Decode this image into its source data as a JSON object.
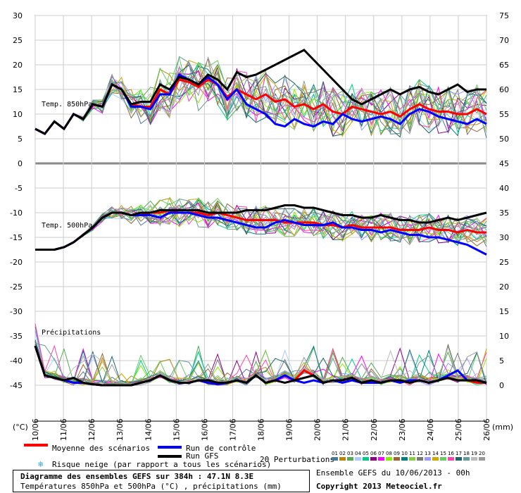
{
  "chart_data": {
    "type": "line",
    "title": "Diagramme des ensembles GEFS sur 384h : 47.1N 8.3E",
    "subtitle": "Températures 850hPa et 500hPa (°C) , précipitations (mm)",
    "x_labels": [
      "10/06",
      "11/06",
      "12/06",
      "13/06",
      "14/06",
      "15/06",
      "16/06",
      "17/06",
      "18/06",
      "19/06",
      "20/06",
      "21/06",
      "22/06",
      "23/06",
      "24/06",
      "25/06",
      "26/06"
    ],
    "left_axis": {
      "unit": "(°C)",
      "ticks": [
        30,
        25,
        20,
        15,
        10,
        5,
        0,
        -5,
        -10,
        -15,
        -20,
        -25,
        -30,
        -35,
        -40,
        -45
      ]
    },
    "right_axis": {
      "unit": "(mm)",
      "ticks": [
        75,
        70,
        65,
        60,
        55,
        50,
        45,
        40,
        35,
        30,
        25,
        20,
        15,
        10,
        5,
        0
      ]
    },
    "panels": [
      {
        "label": "Temp. 850hPa",
        "series": [
          {
            "name": "Moyenne des scénarios",
            "color": "#ff0000",
            "values": [
              7,
              6,
              8.5,
              7,
              10,
              9,
              12,
              11.5,
              16,
              15,
              12,
              11.5,
              11.5,
              15,
              14,
              17,
              16.5,
              15.5,
              17,
              16,
              13.5,
              15,
              14,
              13,
              14,
              12.5,
              13,
              11.5,
              12,
              11,
              12,
              10.5,
              10,
              11.5,
              11,
              10.5,
              10,
              10.5,
              9.5,
              11,
              12,
              11,
              10.5,
              10.5,
              10,
              10,
              11,
              10
            ]
          },
          {
            "name": "Run de contrôle",
            "color": "#0000ff",
            "values": [
              7,
              6,
              8.5,
              7,
              10,
              9,
              12,
              11.5,
              16,
              15,
              11.5,
              11.5,
              11,
              14,
              14,
              18,
              17,
              16,
              17.5,
              16,
              13,
              15,
              12,
              11,
              10,
              8,
              7.5,
              9,
              8,
              7.5,
              8.5,
              8,
              10,
              9,
              8.5,
              9,
              9.5,
              9,
              8,
              10,
              11,
              10.5,
              9.5,
              9,
              8.5,
              8,
              9,
              8
            ]
          },
          {
            "name": "Run GFS",
            "color": "#000000",
            "values": [
              7,
              6,
              8.5,
              7,
              10,
              9,
              12,
              11.5,
              16,
              15,
              12,
              12.5,
              12.5,
              16,
              15,
              17.5,
              17,
              16,
              18,
              17,
              15,
              18.5,
              17.5,
              18,
              19,
              20,
              21,
              22,
              23,
              21,
              19,
              17,
              15,
              13,
              12,
              13,
              14,
              15,
              14,
              15,
              15.5,
              14.5,
              14,
              15,
              16,
              14.5,
              15,
              15
            ]
          }
        ]
      },
      {
        "label": "Temp. 500hPa",
        "series": [
          {
            "name": "Moyenne des scénarios",
            "color": "#ff0000",
            "values": [
              -17.5,
              -17.5,
              -17.5,
              -17,
              -16,
              -14.5,
              -13,
              -11,
              -10,
              -10,
              -10.5,
              -10.5,
              -10,
              -10,
              -9.5,
              -10,
              -10,
              -10,
              -10.5,
              -10,
              -10.5,
              -11,
              -11.5,
              -11.5,
              -11.5,
              -11.5,
              -12,
              -12,
              -12,
              -12,
              -12.5,
              -12.5,
              -13,
              -12.5,
              -13,
              -13,
              -13,
              -13,
              -13.5,
              -13.5,
              -13.5,
              -13,
              -13.5,
              -13.5,
              -14,
              -13.5,
              -14,
              -14
            ]
          },
          {
            "name": "Run de contrôle",
            "color": "#0000ff",
            "values": [
              -17.5,
              -17.5,
              -17.5,
              -17,
              -16,
              -14.5,
              -13,
              -11,
              -10,
              -10,
              -10.5,
              -10.5,
              -10.5,
              -11,
              -10,
              -10,
              -10,
              -10.5,
              -11,
              -11,
              -11.5,
              -12,
              -12.5,
              -13,
              -13,
              -12,
              -11.5,
              -12,
              -12.5,
              -12.5,
              -12.5,
              -12,
              -13,
              -13,
              -13.5,
              -13.5,
              -14,
              -13.5,
              -14,
              -14.5,
              -14.5,
              -15,
              -15,
              -15.5,
              -16,
              -16.5,
              -17.5,
              -18.5
            ]
          },
          {
            "name": "Run GFS",
            "color": "#000000",
            "values": [
              -17.5,
              -17.5,
              -17.5,
              -17,
              -16,
              -14.5,
              -13,
              -11,
              -10,
              -10,
              -10.5,
              -10,
              -10,
              -9.5,
              -9.5,
              -9.5,
              -9.5,
              -9.5,
              -10,
              -10,
              -10,
              -10,
              -9.5,
              -9.5,
              -9.5,
              -9,
              -8.5,
              -8.5,
              -9,
              -9,
              -9.5,
              -10,
              -10.5,
              -10.5,
              -11,
              -11,
              -10.5,
              -11,
              -11.5,
              -11.5,
              -12,
              -12,
              -11.5,
              -11,
              -11.5,
              -11,
              -10.5,
              -10
            ]
          }
        ]
      },
      {
        "label": "Précipitations",
        "series": [
          {
            "name": "Moyenne des scénarios",
            "color": "#ff0000",
            "values": [
              8,
              2,
              1.5,
              1,
              0.5,
              0.5,
              0.2,
              0,
              0,
              0,
              0,
              0.5,
              1,
              2,
              1,
              0.5,
              0.5,
              1,
              0.5,
              0.2,
              0.5,
              1,
              0.5,
              2,
              0.5,
              1,
              2,
              1,
              3,
              2,
              0.5,
              1,
              1,
              1.5,
              0.5,
              1,
              0.5,
              1,
              1,
              0.5,
              1,
              0.5,
              1,
              1.5,
              1,
              1,
              0.5,
              0.5
            ]
          },
          {
            "name": "Run de contrôle",
            "color": "#0000ff",
            "values": [
              8,
              2,
              1.5,
              1,
              0.5,
              0.5,
              0.2,
              0,
              0,
              0,
              0,
              0.5,
              1,
              2,
              1,
              0.5,
              0.5,
              1,
              0.5,
              0.2,
              0.5,
              1,
              0.5,
              2,
              0.5,
              1,
              2,
              1,
              0.5,
              1,
              0.5,
              1,
              0.5,
              1,
              0.5,
              0.5,
              0.5,
              1,
              0.5,
              1,
              1,
              0.5,
              1,
              2,
              3,
              1,
              1,
              0.5
            ]
          },
          {
            "name": "Run GFS",
            "color": "#000000",
            "values": [
              8,
              2,
              1.5,
              1,
              1.5,
              0.5,
              0.2,
              0,
              0,
              0,
              0,
              0.5,
              1,
              2,
              1,
              0.5,
              0.5,
              1,
              1,
              0.5,
              0.5,
              1,
              0.5,
              2,
              0.5,
              1,
              0.5,
              1,
              1.5,
              2,
              0.5,
              1,
              1,
              1.5,
              0.5,
              1,
              0.5,
              1,
              1,
              0.5,
              1,
              0.5,
              1,
              1.5,
              1,
              1,
              1,
              0.5
            ]
          }
        ]
      }
    ],
    "grid": true
  },
  "legend": {
    "mean": "Moyenne des scénarios",
    "control": "Run de contrôle",
    "gfs": "Run GFS",
    "perturbations": "20 Perturbations",
    "snow": "Risque neige (par rapport a tous les scénarios)",
    "perturbation_numbers": [
      "01",
      "02",
      "03",
      "04",
      "05",
      "06",
      "07",
      "08",
      "09",
      "10",
      "11",
      "12",
      "13",
      "14",
      "15",
      "16",
      "17",
      "18",
      "19",
      "20"
    ],
    "perturbation_colors": [
      "#4a7a9a",
      "#b8860b",
      "#55aa55",
      "#aaccff",
      "#00cc88",
      "#880088",
      "#ff00ff",
      "#88ee00",
      "#996633",
      "#008080",
      "#88cc44",
      "#777777",
      "#9999ff",
      "#ccaa00",
      "#66cc66",
      "#ff44aa",
      "#226666",
      "#669999",
      "#bbbbbb",
      "#999999"
    ]
  },
  "footer": {
    "title": "Diagramme des ensembles GEFS sur 384h : 47.1N 8.3E",
    "subtitle": "Températures 850hPa et 500hPa (°C) , précipitations (mm)",
    "run": "Ensemble GEFS du 10/06/2013 - 00h",
    "copyright": "Copyright 2013 Meteociel.fr"
  }
}
